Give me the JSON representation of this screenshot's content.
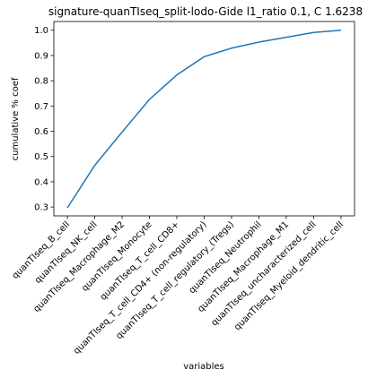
{
  "chart_data": {
    "type": "line",
    "title": "signature-quanTIseq_split-lodo-Gide l1_ratio 0.1, C 1.6238",
    "xlabel": "variables",
    "ylabel": "cumulative % coef",
    "categories": [
      "quanTIseq_B_cell",
      "quanTIseq_NK_cell",
      "quanTIseq_Macrophage_M2",
      "quanTIseq_Monocyte",
      "quanTIseq_T_cell_CD8+",
      "quanTIseq_T_cell_CD4+ (non-regulatory)",
      "quanTIseq_T_cell_regulatory_(Tregs)",
      "quanTIseq_Neutrophil",
      "quanTIseq_Macrophage_M1",
      "quanTIseq_uncharacterized_cell",
      "quanTIseq_Myeloid_dendritic_cell"
    ],
    "values": [
      0.297,
      0.465,
      0.597,
      0.726,
      0.823,
      0.895,
      0.929,
      0.953,
      0.972,
      0.991,
      1.0
    ],
    "yticks": [
      0.3,
      0.4,
      0.5,
      0.6,
      0.7,
      0.8,
      0.9,
      1.0
    ],
    "ytick_labels": [
      "0.3",
      "0.4",
      "0.5",
      "0.6",
      "0.7",
      "0.8",
      "0.9",
      "1.0"
    ],
    "ylim": [
      0.265,
      1.0345
    ],
    "grid": false,
    "line_color": "#1f77b4"
  }
}
